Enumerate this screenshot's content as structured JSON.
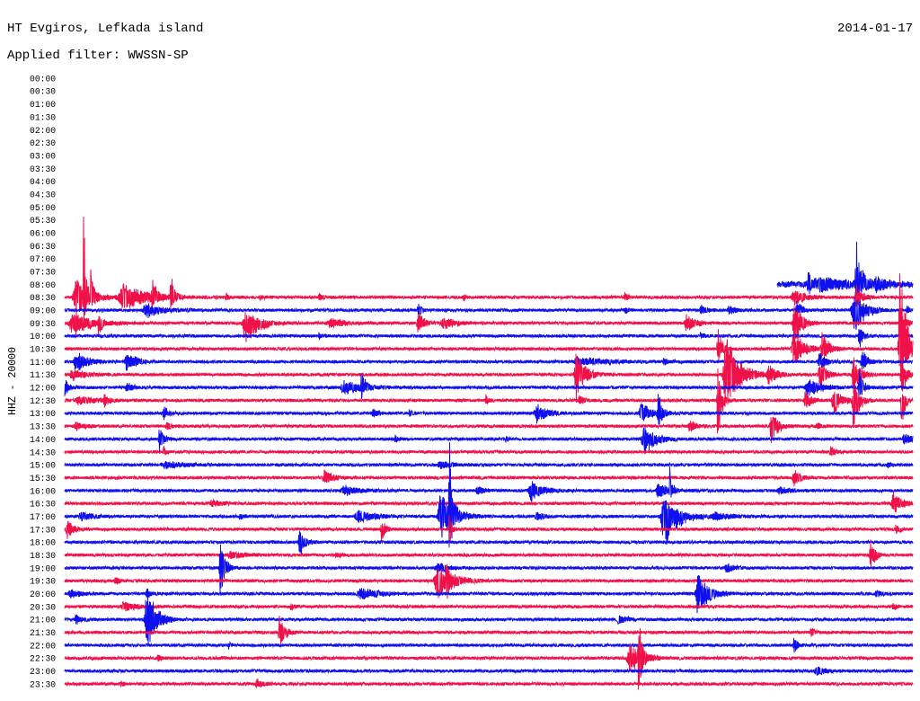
{
  "chart_data": {
    "type": "line",
    "title": "HT Evgiros, Lefkada island",
    "subtitle": "Applied filter: WWSSN-SP",
    "date": "2014-01-17",
    "ylabel": "HHZ - 20000",
    "xlim": [
      0,
      30
    ],
    "grid": false,
    "legend": "none",
    "yticks": [
      "00:00",
      "00:30",
      "01:00",
      "01:30",
      "02:00",
      "02:30",
      "03:00",
      "03:30",
      "04:00",
      "04:30",
      "05:00",
      "05:30",
      "06:00",
      "06:30",
      "07:00",
      "07:30",
      "08:00",
      "08:30",
      "09:00",
      "09:30",
      "10:00",
      "10:30",
      "11:00",
      "11:30",
      "12:00",
      "12:30",
      "13:00",
      "13:30",
      "14:00",
      "14:30",
      "15:00",
      "15:30",
      "16:00",
      "16:30",
      "17:00",
      "17:30",
      "18:00",
      "18:30",
      "19:00",
      "19:30",
      "20:00",
      "20:30",
      "21:00",
      "21:30",
      "22:00",
      "22:30",
      "23:00",
      "23:30"
    ],
    "series": [
      {
        "name": "08:00",
        "color": "#1010ee",
        "start": 25.2,
        "noise": 5000,
        "events": [
          [
            26.3,
            22000,
            14000,
            0.5
          ],
          [
            26.8,
            9000,
            9000,
            2.5
          ],
          [
            28.0,
            67000,
            35000,
            0.5
          ],
          [
            28.7,
            9000,
            9000,
            1.0
          ]
        ]
      },
      {
        "name": "08:30",
        "color": "#f0104a",
        "noise": 2500,
        "events": [
          [
            0.4,
            28000,
            28000,
            1.3
          ],
          [
            0.67,
            170000,
            40000,
            0.15
          ],
          [
            0.92,
            60000,
            20000,
            0.2
          ],
          [
            2.1,
            20000,
            20000,
            2.3
          ],
          [
            3.1,
            42000,
            15000,
            0.3
          ],
          [
            3.75,
            42000,
            20000,
            0.3
          ],
          [
            5.7,
            6000,
            6000,
            0.3
          ],
          [
            6.9,
            5000,
            5000,
            0.3
          ],
          [
            9.0,
            6000,
            6000,
            0.4
          ],
          [
            14.1,
            5000,
            5000,
            0.3
          ],
          [
            19.8,
            8000,
            6000,
            0.3
          ],
          [
            25.8,
            12000,
            12000,
            1.0
          ],
          [
            28.0,
            20000,
            15000,
            0.6
          ]
        ]
      },
      {
        "name": "09:00",
        "color": "#1010ee",
        "noise": 2500,
        "events": [
          [
            2.9,
            11000,
            11000,
            1.5
          ],
          [
            12.5,
            12000,
            12000,
            0.3
          ],
          [
            19.8,
            6000,
            6000,
            0.3
          ],
          [
            22.5,
            7000,
            7000,
            0.5
          ],
          [
            23.5,
            6000,
            6000,
            0.8
          ],
          [
            25.9,
            20000,
            12000,
            0.4
          ],
          [
            27.9,
            28000,
            42000,
            1.0
          ],
          [
            29.8,
            6000,
            6000,
            0.3
          ]
        ]
      },
      {
        "name": "09:30",
        "color": "#f0104a",
        "noise": 2500,
        "events": [
          [
            0.3,
            14000,
            20000,
            1.8
          ],
          [
            1.2,
            12000,
            30000,
            0.2
          ],
          [
            6.4,
            17000,
            36000,
            1.2
          ],
          [
            9.4,
            7000,
            7000,
            1.5
          ],
          [
            12.5,
            21000,
            21000,
            0.5
          ],
          [
            13.4,
            9000,
            9000,
            1.2
          ],
          [
            22.0,
            14000,
            14000,
            0.8
          ],
          [
            25.8,
            40000,
            50000,
            0.6
          ],
          [
            29.6,
            12000,
            12000,
            0.6
          ]
        ]
      },
      {
        "name": "10:00",
        "color": "#1010ee",
        "noise": 2500,
        "events": [
          [
            9.0,
            5000,
            5000,
            0.3
          ],
          [
            22.5,
            5000,
            5000,
            0.4
          ],
          [
            28.1,
            15000,
            20000,
            0.4
          ]
        ]
      },
      {
        "name": "10:30",
        "color": "#f0104a",
        "noise": 2500,
        "events": [
          [
            23.1,
            35000,
            25000,
            0.4
          ],
          [
            25.8,
            30000,
            28000,
            1.0
          ],
          [
            26.8,
            28000,
            18000,
            0.6
          ],
          [
            29.55,
            125000,
            60000,
            0.7
          ]
        ]
      },
      {
        "name": "11:00",
        "color": "#1010ee",
        "noise": 2500,
        "events": [
          [
            0.4,
            17000,
            17000,
            1.0
          ],
          [
            2.2,
            17000,
            17000,
            0.8
          ],
          [
            18.1,
            10000,
            10000,
            0.6
          ],
          [
            18.6,
            4000,
            4000,
            3.0
          ],
          [
            21.2,
            6000,
            6000,
            0.4
          ],
          [
            26.7,
            14000,
            14000,
            0.6
          ],
          [
            28.2,
            20000,
            15000,
            0.5
          ]
        ]
      },
      {
        "name": "11:30",
        "color": "#f0104a",
        "noise": 2500,
        "events": [
          [
            0.3,
            8000,
            8000,
            1.5
          ],
          [
            18.1,
            38000,
            42000,
            0.8
          ],
          [
            23.4,
            62000,
            62000,
            1.2
          ],
          [
            24.9,
            14000,
            14000,
            0.8
          ],
          [
            26.7,
            22000,
            22000,
            0.6
          ],
          [
            27.9,
            30000,
            28000,
            0.6
          ],
          [
            29.6,
            40000,
            40000,
            0.4
          ]
        ]
      },
      {
        "name": "12:00",
        "color": "#1010ee",
        "noise": 2500,
        "events": [
          [
            0.0,
            14000,
            14000,
            0.4
          ],
          [
            2.2,
            7000,
            7000,
            0.6
          ],
          [
            9.9,
            12000,
            12000,
            1.6
          ],
          [
            10.5,
            32000,
            14000,
            0.3
          ],
          [
            26.3,
            14000,
            14000,
            1.2
          ],
          [
            28.1,
            28000,
            20000,
            0.4
          ]
        ]
      },
      {
        "name": "12:30",
        "color": "#f0104a",
        "noise": 2500,
        "events": [
          [
            0.5,
            7000,
            7000,
            1.5
          ],
          [
            1.4,
            10000,
            10000,
            0.4
          ],
          [
            14.9,
            8000,
            8000,
            0.3
          ],
          [
            18.2,
            8000,
            8000,
            0.5
          ],
          [
            23.1,
            60000,
            95000,
            0.3
          ],
          [
            26.2,
            14000,
            14000,
            0.6
          ],
          [
            27.2,
            21000,
            21000,
            0.8
          ],
          [
            27.9,
            25000,
            50000,
            0.5
          ],
          [
            29.6,
            20000,
            50000,
            0.3
          ]
        ]
      },
      {
        "name": "13:00",
        "color": "#1010ee",
        "noise": 2500,
        "events": [
          [
            3.5,
            12000,
            12000,
            0.4
          ],
          [
            10.9,
            6000,
            6000,
            0.5
          ],
          [
            12.2,
            5000,
            5000,
            0.4
          ],
          [
            16.7,
            14000,
            14000,
            1.0
          ],
          [
            20.4,
            17000,
            17000,
            1.0
          ],
          [
            21.0,
            40000,
            25000,
            0.3
          ]
        ]
      },
      {
        "name": "13:30",
        "color": "#f0104a",
        "noise": 2500,
        "events": [
          [
            0.4,
            6000,
            6000,
            0.8
          ],
          [
            3.6,
            6000,
            6000,
            0.5
          ],
          [
            22.1,
            9000,
            9000,
            0.8
          ],
          [
            25.0,
            24000,
            32000,
            0.6
          ],
          [
            26.6,
            5000,
            5000,
            0.4
          ]
        ]
      },
      {
        "name": "14:00",
        "color": "#1010ee",
        "noise": 2500,
        "events": [
          [
            3.35,
            17000,
            20000,
            0.4
          ],
          [
            11.7,
            6000,
            6000,
            0.3
          ],
          [
            15.6,
            5000,
            5000,
            0.3
          ],
          [
            20.5,
            20000,
            28000,
            1.0
          ],
          [
            29.7,
            8000,
            8000,
            0.8
          ]
        ]
      },
      {
        "name": "14:30",
        "color": "#f0104a",
        "noise": 2500,
        "events": [
          [
            3.5,
            7000,
            7000,
            0.3
          ],
          [
            27.1,
            7000,
            7000,
            0.6
          ]
        ]
      },
      {
        "name": "15:00",
        "color": "#1010ee",
        "noise": 2500,
        "events": [
          [
            3.6,
            5000,
            5000,
            2.0
          ],
          [
            13.3,
            5000,
            5000,
            1.5
          ],
          [
            29.1,
            6000,
            6000,
            0.3
          ]
        ]
      },
      {
        "name": "15:30",
        "color": "#f0104a",
        "noise": 2500,
        "events": [
          [
            9.2,
            12000,
            12000,
            0.8
          ],
          [
            25.8,
            14000,
            14000,
            0.6
          ]
        ]
      },
      {
        "name": "16:00",
        "color": "#1010ee",
        "noise": 2500,
        "events": [
          [
            9.9,
            8000,
            8000,
            1.3
          ],
          [
            14.6,
            7000,
            7000,
            0.6
          ],
          [
            16.5,
            17000,
            17000,
            1.0
          ],
          [
            21.0,
            12000,
            12000,
            1.0
          ],
          [
            21.4,
            40000,
            14000,
            0.2
          ],
          [
            25.3,
            6000,
            6000,
            1.0
          ]
        ]
      },
      {
        "name": "16:30",
        "color": "#f0104a",
        "noise": 2500,
        "events": [
          [
            5.2,
            6000,
            6000,
            0.8
          ],
          [
            29.3,
            18000,
            18000,
            0.8
          ]
        ]
      },
      {
        "name": "17:00",
        "color": "#1010ee",
        "noise": 2500,
        "events": [
          [
            0.6,
            6000,
            6000,
            1.2
          ],
          [
            6.2,
            6000,
            6000,
            0.3
          ],
          [
            10.4,
            9000,
            9000,
            1.6
          ],
          [
            13.3,
            35000,
            35000,
            1.2
          ],
          [
            13.6,
            140000,
            65000,
            0.25
          ],
          [
            16.7,
            8000,
            8000,
            0.5
          ],
          [
            21.2,
            28000,
            58000,
            1.2
          ],
          [
            23.0,
            6000,
            6000,
            1.5
          ]
        ]
      },
      {
        "name": "17:30",
        "color": "#f0104a",
        "noise": 2500,
        "events": [
          [
            0.1,
            14000,
            14000,
            0.6
          ],
          [
            11.2,
            22000,
            22000,
            0.3
          ],
          [
            13.6,
            30000,
            30000,
            0.2
          ],
          [
            29.4,
            6000,
            6000,
            0.4
          ]
        ]
      },
      {
        "name": "18:00",
        "color": "#1010ee",
        "noise": 2500,
        "events": [
          [
            8.3,
            25000,
            32000,
            0.4
          ]
        ]
      },
      {
        "name": "18:30",
        "color": "#f0104a",
        "noise": 2500,
        "events": [
          [
            5.9,
            5000,
            5000,
            1.6
          ],
          [
            9.6,
            6000,
            6000,
            0.4
          ],
          [
            28.5,
            28000,
            28000,
            0.4
          ]
        ]
      },
      {
        "name": "19:00",
        "color": "#1010ee",
        "noise": 2500,
        "events": [
          [
            5.5,
            52000,
            56000,
            0.4
          ],
          [
            13.2,
            8000,
            8000,
            1.0
          ],
          [
            23.4,
            8000,
            8000,
            0.6
          ]
        ]
      },
      {
        "name": "19:30",
        "color": "#f0104a",
        "noise": 2500,
        "events": [
          [
            1.8,
            6000,
            6000,
            0.4
          ],
          [
            13.2,
            28000,
            28000,
            1.4
          ],
          [
            13.5,
            35000,
            30000,
            0.2
          ]
        ]
      },
      {
        "name": "20:00",
        "color": "#1010ee",
        "noise": 2500,
        "events": [
          [
            0.2,
            8000,
            8000,
            0.8
          ],
          [
            2.9,
            8000,
            8000,
            0.3
          ],
          [
            10.5,
            8000,
            8000,
            1.8
          ],
          [
            22.4,
            35000,
            35000,
            1.0
          ],
          [
            28.7,
            6000,
            6000,
            0.4
          ]
        ]
      },
      {
        "name": "20:30",
        "color": "#f0104a",
        "noise": 2500,
        "events": [
          [
            2.1,
            8000,
            8000,
            1.0
          ],
          [
            8.0,
            6000,
            6000,
            0.3
          ],
          [
            29.3,
            5000,
            5000,
            0.4
          ]
        ]
      },
      {
        "name": "21:00",
        "color": "#1010ee",
        "noise": 2500,
        "events": [
          [
            0.4,
            7000,
            7000,
            0.6
          ],
          [
            2.9,
            60000,
            58000,
            0.8
          ],
          [
            19.6,
            6000,
            6000,
            0.8
          ]
        ]
      },
      {
        "name": "21:30",
        "color": "#f0104a",
        "noise": 2500,
        "events": [
          [
            7.6,
            25000,
            27000,
            0.5
          ],
          [
            26.4,
            7000,
            7000,
            0.3
          ]
        ]
      },
      {
        "name": "22:00",
        "color": "#1010ee",
        "noise": 2500,
        "events": [
          [
            5.8,
            5000,
            5000,
            0.2
          ],
          [
            25.8,
            15000,
            15000,
            0.3
          ]
        ]
      },
      {
        "name": "22:30",
        "color": "#f0104a",
        "noise": 2500,
        "events": [
          [
            3.3,
            5000,
            5000,
            0.3
          ],
          [
            20.0,
            21000,
            21000,
            1.2
          ],
          [
            20.3,
            93000,
            67000,
            0.25
          ]
        ]
      },
      {
        "name": "23:00",
        "color": "#1010ee",
        "noise": 2500,
        "events": [
          [
            26.6,
            7000,
            7000,
            1.0
          ]
        ]
      },
      {
        "name": "23:30",
        "color": "#f0104a",
        "noise": 2500,
        "events": [
          [
            2.0,
            5000,
            5000,
            0.3
          ],
          [
            6.8,
            7000,
            7000,
            0.6
          ]
        ]
      }
    ]
  }
}
